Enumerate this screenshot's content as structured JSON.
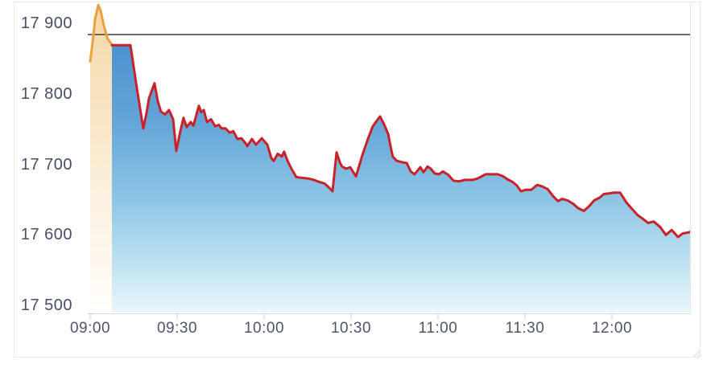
{
  "chart_data": {
    "type": "area",
    "title": "",
    "xlabel": "",
    "ylabel": "",
    "x_axis": {
      "ticks": [
        {
          "label": "09:00",
          "minutes": 0
        },
        {
          "label": "09:30",
          "minutes": 30
        },
        {
          "label": "10:00",
          "minutes": 60
        },
        {
          "label": "10:30",
          "minutes": 90
        },
        {
          "label": "11:00",
          "minutes": 120
        },
        {
          "label": "11:30",
          "minutes": 150
        },
        {
          "label": "12:00",
          "minutes": 180
        }
      ],
      "range_minutes": [
        0,
        207
      ],
      "grid": false
    },
    "y_axis": {
      "ticks": [
        {
          "label": "17 900",
          "value": 17900
        },
        {
          "label": "17 800",
          "value": 17800
        },
        {
          "label": "17 700",
          "value": 17700
        },
        {
          "label": "17 600",
          "value": 17600
        },
        {
          "label": "17 500",
          "value": 17500
        }
      ],
      "ylim": [
        17489,
        17931
      ],
      "grid": false
    },
    "previous_close": {
      "value": 17884,
      "color": "#3d3d3d"
    },
    "legend": "none",
    "series": [
      {
        "name": "opening-auction",
        "type": "area",
        "line_color": "#E8A33C",
        "fill_gradient": [
          [
            0,
            "#F5D7A8"
          ],
          [
            0.4,
            "#F9E7C8"
          ],
          [
            0.65,
            "#FCF2E2"
          ],
          [
            1,
            "#FFFEFB"
          ]
        ],
        "points_time_value": [
          [
            0,
            17846
          ],
          [
            0.8,
            17872
          ],
          [
            1.7,
            17906
          ],
          [
            2.8,
            17926
          ],
          [
            3.6,
            17918
          ],
          [
            4.7,
            17897
          ],
          [
            6,
            17878
          ],
          [
            7.5,
            17870
          ]
        ]
      },
      {
        "name": "intraday-price",
        "type": "area",
        "line_color": "#CA2128",
        "fill_gradient": [
          [
            0,
            "#4890CF"
          ],
          [
            0.31,
            "#64A5D8"
          ],
          [
            0.6,
            "#8FC6E6"
          ],
          [
            0.85,
            "#C4E5F2"
          ],
          [
            1,
            "#EAF7FC"
          ]
        ],
        "points_time_value": [
          [
            7.5,
            17869
          ],
          [
            13.9,
            17869
          ],
          [
            16.1,
            17808
          ],
          [
            18.3,
            17751
          ],
          [
            19.4,
            17772
          ],
          [
            20.3,
            17794
          ],
          [
            22.2,
            17815
          ],
          [
            23.3,
            17790
          ],
          [
            24.4,
            17775
          ],
          [
            25.8,
            17771
          ],
          [
            27.2,
            17777
          ],
          [
            28.6,
            17764
          ],
          [
            29.7,
            17719
          ],
          [
            31,
            17745
          ],
          [
            32.2,
            17766
          ],
          [
            33.3,
            17753
          ],
          [
            34.7,
            17760
          ],
          [
            35.6,
            17755
          ],
          [
            37.5,
            17783
          ],
          [
            38.3,
            17774
          ],
          [
            39.2,
            17777
          ],
          [
            40.3,
            17760
          ],
          [
            41.7,
            17764
          ],
          [
            43.1,
            17754
          ],
          [
            44.4,
            17756
          ],
          [
            45.3,
            17751
          ],
          [
            46.7,
            17751
          ],
          [
            48.1,
            17745
          ],
          [
            49.4,
            17747
          ],
          [
            50.8,
            17736
          ],
          [
            52.2,
            17737
          ],
          [
            53.6,
            17730
          ],
          [
            54.2,
            17726
          ],
          [
            55.8,
            17736
          ],
          [
            57.2,
            17728
          ],
          [
            59.2,
            17737
          ],
          [
            61.1,
            17728
          ],
          [
            62.5,
            17709
          ],
          [
            63.3,
            17705
          ],
          [
            64.7,
            17715
          ],
          [
            66.1,
            17711
          ],
          [
            66.9,
            17718
          ],
          [
            68.3,
            17703
          ],
          [
            69.7,
            17692
          ],
          [
            71.1,
            17682
          ],
          [
            73,
            17681
          ],
          [
            75.3,
            17680
          ],
          [
            77.2,
            17678
          ],
          [
            79.2,
            17675
          ],
          [
            80.8,
            17673
          ],
          [
            82.2,
            17668
          ],
          [
            83.6,
            17662
          ],
          [
            85,
            17717
          ],
          [
            86.1,
            17703
          ],
          [
            86.9,
            17697
          ],
          [
            88.3,
            17694
          ],
          [
            89.7,
            17696
          ],
          [
            91.7,
            17683
          ],
          [
            93.9,
            17713
          ],
          [
            95.8,
            17736
          ],
          [
            97.5,
            17754
          ],
          [
            98.9,
            17762
          ],
          [
            100,
            17768
          ],
          [
            101.4,
            17757
          ],
          [
            102.8,
            17743
          ],
          [
            103.6,
            17726
          ],
          [
            104.4,
            17711
          ],
          [
            105.8,
            17705
          ],
          [
            107.8,
            17703
          ],
          [
            109.2,
            17702
          ],
          [
            110.6,
            17690
          ],
          [
            111.9,
            17686
          ],
          [
            113.9,
            17696
          ],
          [
            115,
            17689
          ],
          [
            116.4,
            17697
          ],
          [
            117.5,
            17694
          ],
          [
            118.9,
            17687
          ],
          [
            120.3,
            17686
          ],
          [
            121.7,
            17690
          ],
          [
            123.6,
            17685
          ],
          [
            125.3,
            17677
          ],
          [
            127.2,
            17676
          ],
          [
            129.4,
            17678
          ],
          [
            131.9,
            17678
          ],
          [
            133.6,
            17680
          ],
          [
            136.4,
            17686
          ],
          [
            138.9,
            17686
          ],
          [
            140.6,
            17686
          ],
          [
            142.5,
            17683
          ],
          [
            143.9,
            17679
          ],
          [
            145.8,
            17675
          ],
          [
            147.2,
            17670
          ],
          [
            148.6,
            17662
          ],
          [
            150.3,
            17664
          ],
          [
            152.2,
            17664
          ],
          [
            154.2,
            17671
          ],
          [
            155.8,
            17669
          ],
          [
            157.8,
            17665
          ],
          [
            159.7,
            17655
          ],
          [
            161.4,
            17648
          ],
          [
            162.8,
            17651
          ],
          [
            164.7,
            17649
          ],
          [
            166.7,
            17644
          ],
          [
            168.3,
            17638
          ],
          [
            170.3,
            17634
          ],
          [
            172.2,
            17641
          ],
          [
            173.9,
            17649
          ],
          [
            175.8,
            17653
          ],
          [
            177.2,
            17658
          ],
          [
            179.2,
            17659
          ],
          [
            180.8,
            17660
          ],
          [
            182.8,
            17660
          ],
          [
            185,
            17646
          ],
          [
            186.9,
            17637
          ],
          [
            188.9,
            17628
          ],
          [
            190.6,
            17623
          ],
          [
            192.5,
            17617
          ],
          [
            194.4,
            17619
          ],
          [
            196.7,
            17611
          ],
          [
            198.6,
            17600
          ],
          [
            200.6,
            17607
          ],
          [
            202.8,
            17597
          ],
          [
            204.4,
            17602
          ],
          [
            206.9,
            17604
          ]
        ]
      }
    ],
    "colors": {
      "axis_line": "#d6d6d6",
      "tick_mark": "#c9ced4",
      "plot_right_border": "#e2e2e2",
      "card_border": "#e7e9ea",
      "y_label_text": "#464e68",
      "x_label_text": "#4d5566",
      "background": "#ffffff"
    }
  }
}
